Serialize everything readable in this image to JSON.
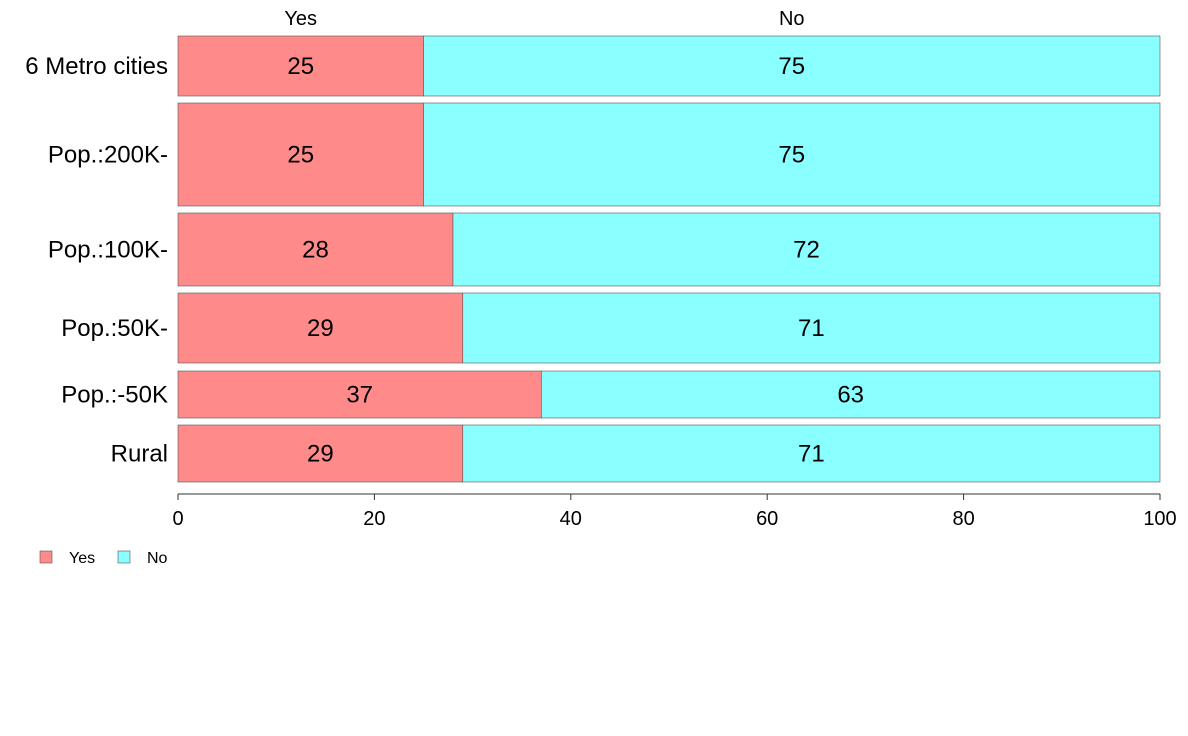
{
  "chart_data": {
    "type": "bar",
    "orientation": "horizontal",
    "stacked": true,
    "categories": [
      "6 Metro cities",
      "Pop.:200K-",
      "Pop.:100K-",
      "Pop.:50K-",
      "Pop.:-50K",
      "Rural"
    ],
    "series": [
      {
        "name": "Yes",
        "values": [
          25,
          25,
          28,
          29,
          37,
          29
        ],
        "color": "#ff8a8a"
      },
      {
        "name": "No",
        "values": [
          75,
          75,
          72,
          71,
          63,
          71
        ],
        "color": "#8affff"
      }
    ],
    "data_labels": {
      "Yes": [
        "25",
        "25",
        "28",
        "29",
        "37",
        "29"
      ],
      "No": [
        "75",
        "75",
        "72",
        "71",
        "63",
        "71"
      ]
    },
    "column_headers": [
      "Yes",
      "No"
    ],
    "xlim": [
      0,
      100
    ],
    "xticks": [
      0,
      20,
      40,
      60,
      80,
      100
    ],
    "legend": {
      "position": "bottom-left",
      "entries": [
        "Yes",
        "No"
      ]
    },
    "grid": false
  }
}
